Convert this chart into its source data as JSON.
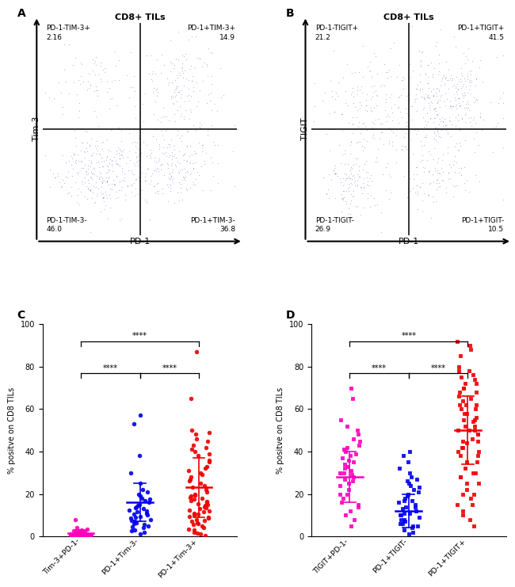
{
  "panel_A": {
    "title": "CD8+ TILs",
    "xlabel": "PD-1",
    "ylabel": "Tim-3",
    "quadrant_labels_UL": "PD-1-TIM-3+\n2.16",
    "quadrant_labels_UR": "PD-1+TIM-3+\n14.9",
    "quadrant_labels_LL": "PD-1-TIM-3-\n46.0",
    "quadrant_labels_LR": "PD-1+TIM-3-\n36.8",
    "contour_color": "#3a3aaa"
  },
  "panel_B": {
    "title": "CD8+ TILs",
    "xlabel": "PD-1",
    "ylabel": "TIGIT",
    "quadrant_labels_UL": "PD-1-TIGIT+\n21.2",
    "quadrant_labels_UR": "PD-1+TIGIT+\n41.5",
    "quadrant_labels_LL": "PD-1-TIGIT-\n26.9",
    "quadrant_labels_LR": "PD-1+TIGIT-\n10.5",
    "contour_color": "#3a3aaa"
  },
  "panel_C": {
    "letter": "C",
    "ylabel": "% positve on CD8 TILs",
    "ylim": [
      0,
      100
    ],
    "yticks": [
      0,
      20,
      40,
      60,
      80,
      100
    ],
    "groups": [
      "Tim-3+PD-1-",
      "PD-1+Tim-3-",
      "PD-1+Tim-3+"
    ],
    "colors": [
      "#ff00bb",
      "#0000ee",
      "#ee0000"
    ],
    "marker": "o",
    "mean1": 1.5,
    "sd1": 1.5,
    "mean2": 16.0,
    "sd2": 9.0,
    "mean3": 23.0,
    "sd3": 14.0,
    "group0": [
      0.1,
      0.15,
      0.2,
      0.25,
      0.3,
      0.35,
      0.4,
      0.45,
      0.5,
      0.6,
      0.7,
      0.8,
      0.9,
      1.0,
      1.1,
      1.2,
      1.3,
      1.5,
      1.6,
      1.8,
      2.0,
      2.2,
      2.5,
      2.8,
      3.0,
      3.5,
      4.0,
      8.0,
      0.4,
      0.6,
      0.8,
      1.0,
      0.3,
      0.7,
      1.4,
      0.5,
      0.9,
      1.7,
      0.2,
      0.6
    ],
    "group1": [
      1.0,
      2.0,
      3.0,
      4.0,
      5.0,
      5.5,
      6.0,
      6.5,
      7.0,
      7.5,
      8.0,
      8.5,
      9.0,
      9.5,
      10.0,
      10.5,
      11.0,
      11.5,
      12.0,
      12.5,
      13.0,
      13.5,
      14.0,
      14.5,
      15.0,
      16.0,
      17.0,
      17.5,
      18.0,
      19.0,
      20.0,
      21.0,
      22.0,
      25.0,
      30.0,
      38.0,
      53.0,
      57.0,
      2.5,
      4.5
    ],
    "group2": [
      0.5,
      1.0,
      2.0,
      3.0,
      4.0,
      5.0,
      5.5,
      6.0,
      6.5,
      7.0,
      7.5,
      8.0,
      8.5,
      9.0,
      9.5,
      10.0,
      10.5,
      11.0,
      11.5,
      12.0,
      12.5,
      13.0,
      13.5,
      14.0,
      14.5,
      15.0,
      15.5,
      16.0,
      16.5,
      17.0,
      17.5,
      18.0,
      18.5,
      19.0,
      19.5,
      20.0,
      21.0,
      22.0,
      23.0,
      24.0,
      25.0,
      26.0,
      27.0,
      28.0,
      29.0,
      30.0,
      31.0,
      32.0,
      33.0,
      35.0,
      36.0,
      38.0,
      39.0,
      40.0,
      41.0,
      42.0,
      43.0,
      45.0,
      46.0,
      48.0,
      49.0,
      50.0,
      65.0,
      87.0,
      1.5,
      3.5
    ]
  },
  "panel_D": {
    "letter": "D",
    "ylabel": "% positve on CD8 TILs",
    "ylim": [
      0,
      100
    ],
    "yticks": [
      0,
      20,
      40,
      60,
      80,
      100
    ],
    "groups": [
      "TIGIT+PD-1-",
      "PD-1+TIGIT-",
      "PD-1+TIGIT+"
    ],
    "colors": [
      "#ff00bb",
      "#0000ee",
      "#ee0000"
    ],
    "marker": "s",
    "mean1": 28.0,
    "sd1": 12.0,
    "mean2": 12.0,
    "sd2": 8.0,
    "mean3": 50.0,
    "sd3": 16.0,
    "group0": [
      5,
      8,
      10,
      12,
      14,
      15,
      16,
      18,
      20,
      22,
      24,
      25,
      26,
      27,
      28,
      29,
      30,
      31,
      32,
      33,
      34,
      35,
      36,
      37,
      38,
      39,
      40,
      41,
      42,
      43,
      45,
      46,
      48,
      50,
      52,
      55,
      65,
      70,
      20,
      30
    ],
    "group1": [
      1,
      2,
      3,
      4,
      5,
      5,
      6,
      7,
      8,
      8,
      9,
      10,
      11,
      11,
      12,
      13,
      14,
      14,
      15,
      16,
      17,
      17,
      18,
      19,
      20,
      21,
      22,
      23,
      24,
      25,
      26,
      27,
      28,
      30,
      32,
      35,
      38,
      40,
      6,
      10
    ],
    "group2": [
      5,
      8,
      10,
      12,
      15,
      18,
      20,
      22,
      25,
      28,
      30,
      32,
      35,
      38,
      40,
      42,
      44,
      45,
      46,
      48,
      50,
      50,
      52,
      54,
      55,
      56,
      58,
      60,
      62,
      62,
      64,
      65,
      66,
      68,
      70,
      70,
      72,
      74,
      75,
      76,
      78,
      78,
      80,
      85,
      88,
      90,
      92,
      20,
      30,
      40,
      25,
      35,
      45,
      55,
      60,
      50,
      42,
      68,
      72,
      58,
      48,
      38,
      28,
      52,
      62,
      15
    ]
  }
}
